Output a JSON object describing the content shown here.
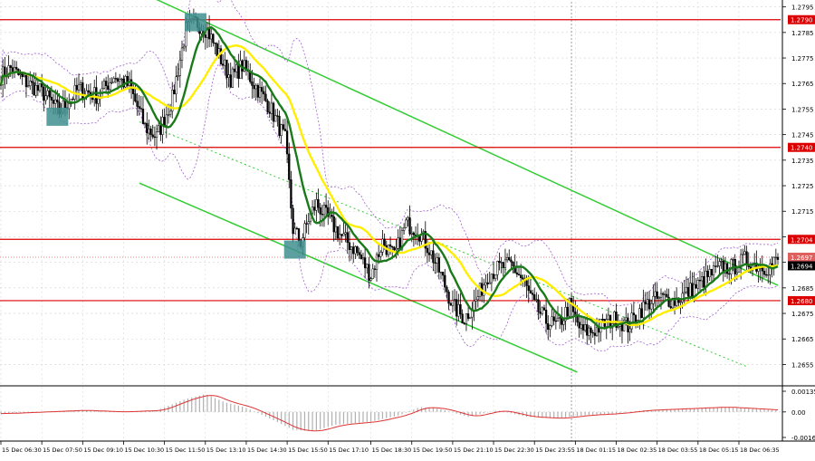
{
  "chart_data": [
    {
      "type": "candlestick",
      "title": "",
      "ylim": [
        1.2647,
        1.2797
      ],
      "y_ticks": [
        "1.2795",
        "1.2785",
        "1.2775",
        "1.2765",
        "1.2755",
        "1.2745",
        "1.2735",
        "1.2725",
        "1.2715",
        "1.2705",
        "1.2695",
        "1.2685",
        "1.2675",
        "1.2665",
        "1.2655"
      ],
      "x_ticks": [
        "15 Dec 06:30",
        "15 Dec 07:50",
        "15 Dec 09:10",
        "15 Dec 10:30",
        "15 Dec 11:50",
        "15 Dec 13:10",
        "15 Dec 14:30",
        "15 Dec 15:50",
        "15 Dec 17:10",
        "15 Dec 18:30",
        "15 Dec 19:50",
        "15 Dec 21:10",
        "15 Dec 22:30",
        "15 Dec 23:55",
        "18 Dec 01:15",
        "18 Dec 02:35",
        "18 Dec 03:55",
        "18 Dec 05:15",
        "18 Dec 06:35"
      ],
      "price_anchors": [
        [
          0,
          1.2768
        ],
        [
          5,
          1.2771
        ],
        [
          12,
          1.2766
        ],
        [
          22,
          1.2761
        ],
        [
          30,
          1.2754
        ],
        [
          40,
          1.2763
        ],
        [
          50,
          1.276
        ],
        [
          58,
          1.2768
        ],
        [
          66,
          1.2764
        ],
        [
          74,
          1.2748
        ],
        [
          80,
          1.2744
        ],
        [
          88,
          1.2759
        ],
        [
          95,
          1.2786
        ],
        [
          100,
          1.2789
        ],
        [
          106,
          1.2786
        ],
        [
          112,
          1.2776
        ],
        [
          118,
          1.2767
        ],
        [
          124,
          1.2772
        ],
        [
          130,
          1.2765
        ],
        [
          138,
          1.2756
        ],
        [
          146,
          1.2743
        ],
        [
          150,
          1.2708
        ],
        [
          154,
          1.2703
        ],
        [
          158,
          1.2712
        ],
        [
          162,
          1.2718
        ],
        [
          168,
          1.2712
        ],
        [
          175,
          1.2705
        ],
        [
          182,
          1.27
        ],
        [
          190,
          1.269
        ],
        [
          196,
          1.2703
        ],
        [
          202,
          1.2697
        ],
        [
          208,
          1.271
        ],
        [
          214,
          1.2708
        ],
        [
          220,
          1.27
        ],
        [
          226,
          1.269
        ],
        [
          232,
          1.2678
        ],
        [
          238,
          1.2673
        ],
        [
          244,
          1.268
        ],
        [
          250,
          1.269
        ],
        [
          256,
          1.2693
        ],
        [
          262,
          1.2694
        ],
        [
          268,
          1.2688
        ],
        [
          274,
          1.2678
        ],
        [
          280,
          1.2672
        ],
        [
          286,
          1.267
        ],
        [
          292,
          1.2678
        ],
        [
          298,
          1.2668
        ],
        [
          304,
          1.2668
        ],
        [
          310,
          1.2671
        ],
        [
          316,
          1.2673
        ],
        [
          322,
          1.267
        ],
        [
          328,
          1.2676
        ],
        [
          334,
          1.268
        ],
        [
          340,
          1.2681
        ],
        [
          346,
          1.268
        ],
        [
          352,
          1.2683
        ],
        [
          358,
          1.2686
        ],
        [
          364,
          1.269
        ],
        [
          370,
          1.2693
        ],
        [
          376,
          1.2693
        ],
        [
          382,
          1.2696
        ],
        [
          388,
          1.2694
        ],
        [
          394,
          1.2693
        ],
        [
          399,
          1.2696
        ]
      ],
      "bar_count": 400,
      "series": [
        {
          "name": "",
          "kind": "moving-average-fast",
          "color": "#1a7a1a"
        },
        {
          "name": "",
          "kind": "moving-average-slow",
          "color": "#ffee00"
        },
        {
          "name": "",
          "kind": "bands",
          "color": "#a060d0"
        }
      ],
      "levels": [
        {
          "value": "1.2790",
          "price": 1.279,
          "color": "#dd0000"
        },
        {
          "value": "1.2740",
          "price": 1.274,
          "color": "#dd0000"
        },
        {
          "value": "1.2704",
          "price": 1.2704,
          "color": "#dd0000"
        },
        {
          "value": "1.2680",
          "price": 1.268,
          "color": "#dd0000"
        }
      ],
      "current_price": {
        "value": "1.2694",
        "price": 1.2694
      },
      "bid_line": {
        "value": "1.2697",
        "price": 1.2697,
        "color": "#e06060"
      },
      "channel": {
        "color": "#33cc33",
        "upper": [
          [
            0,
            1.2801
          ],
          [
            400,
            1.2686
          ]
        ],
        "lower": [
          [
            0,
            1.2726
          ],
          [
            296,
            1.2652
          ]
        ],
        "dotted": [
          [
            0,
            1.275
          ],
          [
            400,
            1.2654
          ]
        ]
      },
      "markers": [
        {
          "label": "entry",
          "bar": 29,
          "price": 1.2752,
          "color": "#3f8f8f"
        },
        {
          "label": "entry",
          "bar": 100,
          "price": 1.2789,
          "color": "#3f8f8f"
        },
        {
          "label": "entry",
          "bar": 151,
          "price": 1.27,
          "color": "#3f8f8f"
        }
      ],
      "session_divider": {
        "bar": 293
      }
    },
    {
      "type": "histogram",
      "title": "",
      "ylim": [
        -0.0018,
        0.0015
      ],
      "y_ticks": [
        "0.00135",
        "0.00",
        "-0.0016"
      ],
      "histogram_anchors": [
        [
          0,
          -0.0001
        ],
        [
          20,
          0.0
        ],
        [
          40,
          0.0001
        ],
        [
          60,
          0.0
        ],
        [
          80,
          0.0001
        ],
        [
          95,
          0.0008
        ],
        [
          105,
          0.0011
        ],
        [
          115,
          0.0006
        ],
        [
          125,
          0.0003
        ],
        [
          138,
          -0.0004
        ],
        [
          150,
          -0.0011
        ],
        [
          160,
          -0.0012
        ],
        [
          172,
          -0.0008
        ],
        [
          190,
          -0.0006
        ],
        [
          205,
          -0.0002
        ],
        [
          215,
          0.0003
        ],
        [
          225,
          0.0002
        ],
        [
          240,
          -0.0003
        ],
        [
          255,
          0.0001
        ],
        [
          270,
          -0.0003
        ],
        [
          285,
          -0.0004
        ],
        [
          300,
          -0.0002
        ],
        [
          315,
          -0.0001
        ],
        [
          330,
          0.0001
        ],
        [
          350,
          0.0002
        ],
        [
          370,
          0.0003
        ],
        [
          385,
          0.0002
        ],
        [
          399,
          0.0001
        ]
      ],
      "signal_color": "#dd3333",
      "histogram_color": "#b0b0b0"
    }
  ]
}
